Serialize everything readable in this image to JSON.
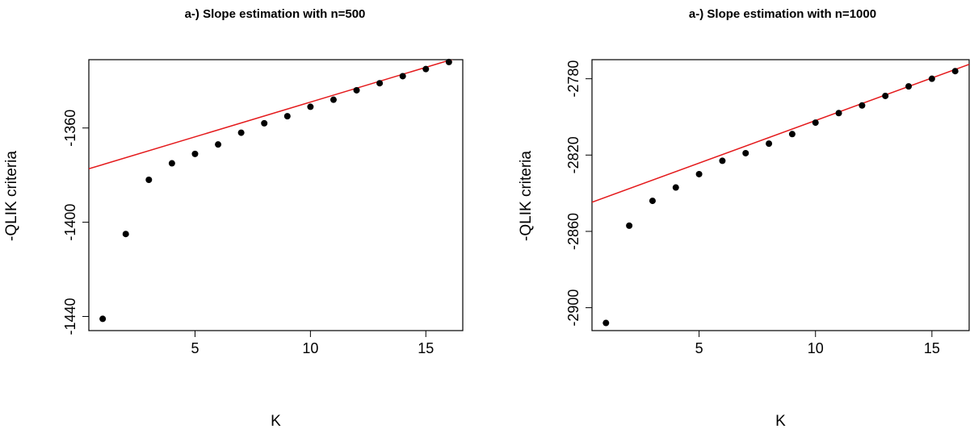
{
  "chart_data": [
    {
      "type": "scatter",
      "title": "a-) Slope estimation with n=500",
      "xlabel": "K",
      "ylabel": "-QLIK criteria",
      "xlim": [
        0.4,
        16.6
      ],
      "ylim": [
        -1446,
        -1331
      ],
      "x_ticks": [
        "5",
        "10",
        "15"
      ],
      "y_ticks": [
        "-1440",
        "-1400",
        "-1360"
      ],
      "grid": false,
      "legend": "none",
      "points_color": "#000000",
      "fit_line_color": "#e41a1c",
      "series": [
        {
          "x": [
            1,
            2,
            3,
            4,
            5,
            6,
            7,
            8,
            9,
            10,
            11,
            12,
            13,
            14,
            15,
            16
          ],
          "y": [
            -1441,
            -1405,
            -1382,
            -1375,
            -1371,
            -1367,
            -1362,
            -1358,
            -1355,
            -1351,
            -1348,
            -1344,
            -1341,
            -1338,
            -1335,
            -1332
          ]
        }
      ],
      "fit_line": {
        "intercept": -1378.5,
        "slope": 2.95
      }
    },
    {
      "type": "scatter",
      "title": "a-) Slope estimation with n=1000",
      "xlabel": "K",
      "ylabel": "-QLIK criteria",
      "xlim": [
        0.4,
        16.6
      ],
      "ylim": [
        -2912,
        -2770
      ],
      "x_ticks": [
        "5",
        "10",
        "15"
      ],
      "y_ticks": [
        "-2900",
        "-2860",
        "-2820",
        "-2780"
      ],
      "grid": false,
      "legend": "none",
      "points_color": "#000000",
      "fit_line_color": "#e41a1c",
      "series": [
        {
          "x": [
            1,
            2,
            3,
            4,
            5,
            6,
            7,
            8,
            9,
            10,
            11,
            12,
            13,
            14,
            15,
            16
          ],
          "y": [
            -2908,
            -2857,
            -2844,
            -2837,
            -2830,
            -2823,
            -2819,
            -2814,
            -2809,
            -2803,
            -2798,
            -2794,
            -2789,
            -2784,
            -2780,
            -2776
          ]
        }
      ],
      "fit_line": {
        "intercept": -2846.5,
        "slope": 4.46
      }
    }
  ]
}
